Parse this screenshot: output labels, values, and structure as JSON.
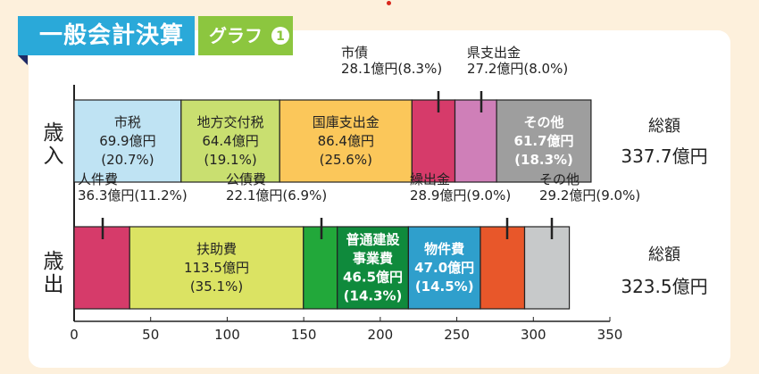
{
  "title": {
    "main": "一般会計決算",
    "sub": "グラフ",
    "badge_number": "1"
  },
  "rows": {
    "revenue": {
      "label": "歳入"
    },
    "expenditure": {
      "label": "歳出"
    }
  },
  "chart_data": {
    "type": "bar",
    "orientation": "horizontal-stacked",
    "xlim": [
      0,
      350
    ],
    "xticks": [
      "0",
      "50",
      "100",
      "150",
      "200",
      "250",
      "300",
      "350"
    ],
    "series": [
      {
        "name": "歳入",
        "total_label": "総額",
        "total_value": "337.7億円",
        "segments": [
          {
            "name": "市税",
            "value": 69.9,
            "value_text": "69.9億円",
            "pct_text": "(20.7%)",
            "color": "#bfe3f3",
            "text_color": "#222222",
            "bold": false,
            "label_inside": true
          },
          {
            "name": "地方交付税",
            "value": 64.4,
            "value_text": "64.4億円",
            "pct_text": "(19.1%)",
            "color": "#c9df70",
            "text_color": "#222222",
            "bold": false,
            "label_inside": true
          },
          {
            "name": "国庫支出金",
            "value": 86.4,
            "value_text": "86.4億円",
            "pct_text": "(25.6%)",
            "color": "#fbc75a",
            "text_color": "#222222",
            "bold": false,
            "label_inside": true
          },
          {
            "name": "市債",
            "value": 28.1,
            "value_text": "28.1億円",
            "pct_text": "(8.3%)",
            "color": "#d63b6a",
            "text_color": "#222222",
            "bold": false,
            "label_inside": false
          },
          {
            "name": "県支出金",
            "value": 27.2,
            "value_text": "27.2億円",
            "pct_text": "(8.0%)",
            "color": "#cf7fb8",
            "text_color": "#222222",
            "bold": false,
            "label_inside": false
          },
          {
            "name": "その他",
            "value": 61.7,
            "value_text": "61.7億円",
            "pct_text": "(18.3%)",
            "color": "#9e9e9e",
            "text_color": "#ffffff",
            "bold": true,
            "label_inside": true
          }
        ]
      },
      {
        "name": "歳出",
        "total_label": "総額",
        "total_value": "323.5億円",
        "segments": [
          {
            "name": "人件費",
            "value": 36.3,
            "value_text": "36.3億円",
            "pct_text": "(11.2%)",
            "color": "#d63b6a",
            "text_color": "#222222",
            "bold": false,
            "label_inside": false
          },
          {
            "name": "扶助費",
            "value": 113.5,
            "value_text": "113.5億円",
            "pct_text": "(35.1%)",
            "color": "#dbe363",
            "text_color": "#222222",
            "bold": false,
            "label_inside": true
          },
          {
            "name": "公債費",
            "value": 22.1,
            "value_text": "22.1億円",
            "pct_text": "(6.9%)",
            "color": "#22a83a",
            "text_color": "#222222",
            "bold": false,
            "label_inside": false
          },
          {
            "name": "普通建設事業費",
            "name_lines": [
              "普通建設",
              "事業費"
            ],
            "value": 46.5,
            "value_text": "46.5億円",
            "pct_text": "(14.3%)",
            "color": "#0f8a3c",
            "text_color": "#ffffff",
            "bold": true,
            "label_inside": true
          },
          {
            "name": "物件費",
            "value": 47.0,
            "value_text": "47.0億円",
            "pct_text": "(14.5%)",
            "color": "#2f9fcc",
            "text_color": "#ffffff",
            "bold": true,
            "label_inside": true
          },
          {
            "name": "繰出金",
            "value": 28.9,
            "value_text": "28.9億円",
            "pct_text": "(9.0%)",
            "color": "#e8572a",
            "text_color": "#222222",
            "bold": false,
            "label_inside": false
          },
          {
            "name": "その他",
            "value": 29.2,
            "value_text": "29.2億円",
            "pct_text": "(9.0%)",
            "color": "#c7c9ca",
            "text_color": "#222222",
            "bold": false,
            "label_inside": false
          }
        ]
      }
    ]
  }
}
